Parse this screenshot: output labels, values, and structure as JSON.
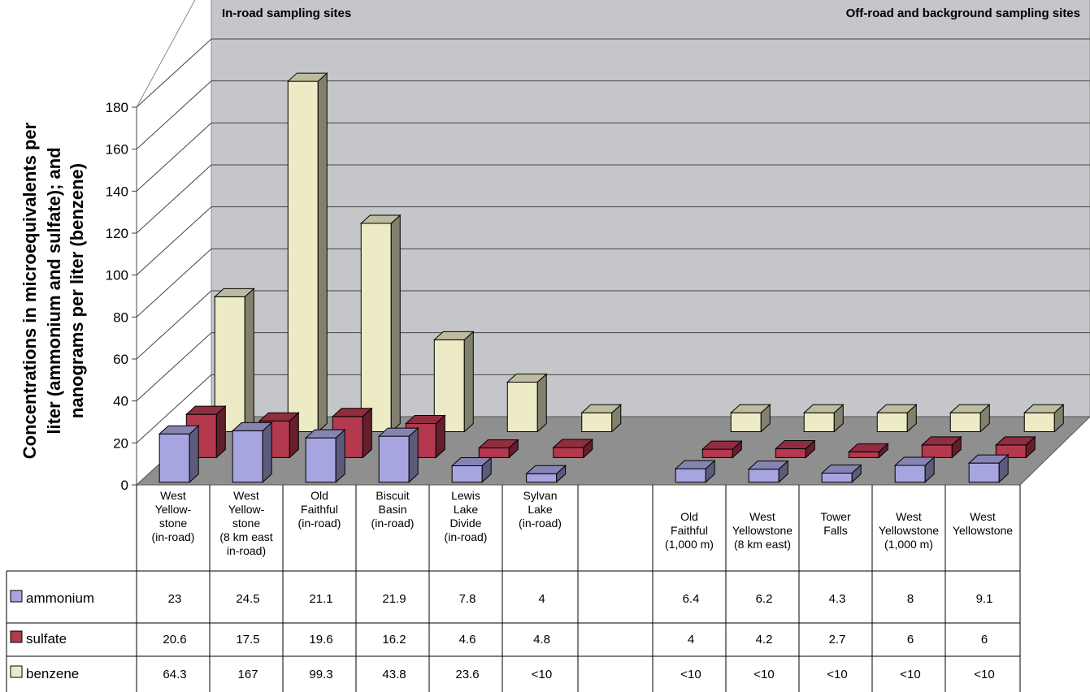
{
  "chart_data": {
    "type": "bar",
    "subtype": "3d-clustered-column-with-data-table",
    "title": "",
    "group_labels": [
      "In-road sampling sites",
      "Off-road and background sampling sites"
    ],
    "ylabel_lines": [
      "Concentrations in microequivalents per",
      "liter (ammonium and sulfate); and",
      "nanograms per liter (benzene)"
    ],
    "ylim": [
      0,
      180
    ],
    "yticks": [
      "0",
      "20",
      "40",
      "60",
      "80",
      "100",
      "120",
      "140",
      "160",
      "180"
    ],
    "grid": true,
    "categories": [
      [
        "West",
        "Yellow-",
        "stone",
        "(in-road)"
      ],
      [
        "West",
        "Yellow-",
        "stone",
        "(8 km east",
        "in-road)"
      ],
      [
        "Old",
        "Faithful",
        "(in-road)"
      ],
      [
        "Biscuit",
        "Basin",
        "(in-road)"
      ],
      [
        "Lewis",
        "Lake",
        "Divide",
        "(in-road)"
      ],
      [
        "Sylvan",
        "Lake",
        "(in-road)"
      ],
      [],
      [
        "Old",
        "Faithful",
        "(1,000 m)"
      ],
      [
        "West",
        "Yellowstone",
        "(8 km east)"
      ],
      [
        "Tower",
        "Falls"
      ],
      [
        "West",
        "Yellowstone",
        "(1,000 m)"
      ],
      [
        "West",
        "Yellowstone"
      ]
    ],
    "series": [
      {
        "name": "ammonium",
        "color": "#a7a5e0",
        "values": [
          23,
          24.5,
          21.1,
          21.9,
          7.8,
          4,
          null,
          6.4,
          6.2,
          4.3,
          8,
          9.1
        ],
        "table_values": [
          "23",
          "24.5",
          "21.1",
          "21.9",
          "7.8",
          "4",
          "",
          "6.4",
          "6.2",
          "4.3",
          "8",
          "9.1"
        ]
      },
      {
        "name": "sulfate",
        "color": "#b4384e",
        "values": [
          20.6,
          17.5,
          19.6,
          16.2,
          4.6,
          4.8,
          null,
          4,
          4.2,
          2.7,
          6,
          6
        ],
        "table_values": [
          "20.6",
          "17.5",
          "19.6",
          "16.2",
          "4.6",
          "4.8",
          "",
          "4",
          "4.2",
          "2.7",
          "6",
          "6"
        ]
      },
      {
        "name": "benzene",
        "color": "#ecebc6",
        "values": [
          64.3,
          167,
          99.3,
          43.8,
          23.6,
          9,
          null,
          9,
          9,
          9,
          9,
          9
        ],
        "table_values": [
          "64.3",
          "167",
          "99.3",
          "43.8",
          "23.6",
          "<10",
          "",
          "<10",
          "<10",
          "<10",
          "<10",
          "<10"
        ]
      }
    ]
  }
}
